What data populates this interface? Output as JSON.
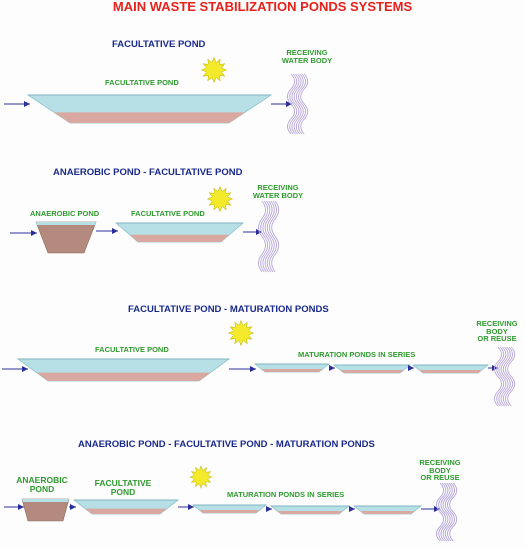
{
  "title": "MAIN WASTE STABILIZATION PONDS SYSTEMS",
  "colors": {
    "title": "#e8211b",
    "section_title": "#1a2a8c",
    "label": "#2f9a2f",
    "water": "#b7dfe6",
    "sludge": "#d9a8a0",
    "anaerobic_body": "#b58a7e",
    "sun": "#f2ea2a",
    "arrow": "#2a2f9a",
    "river": "#b8a7d8"
  },
  "sections": [
    {
      "title": "FACULTATIVE POND",
      "labels": {
        "facultative": "FACULTATIVE POND",
        "receiving": [
          "RECEIVING",
          "WATER BODY"
        ]
      }
    },
    {
      "title": "ANAEROBIC POND - FACULTATIVE POND",
      "labels": {
        "anaerobic": "ANAEROBIC POND",
        "facultative": "FACULTATIVE POND",
        "receiving": [
          "RECEIVING",
          "WATER BODY"
        ]
      }
    },
    {
      "title": "FACULTATIVE POND - MATURATION PONDS",
      "labels": {
        "facultative": "FACULTATIVE POND",
        "maturation": "MATURATION PONDS IN SERIES",
        "receiving": [
          "RECEIVING",
          "BODY",
          "OR REUSE"
        ]
      }
    },
    {
      "title": "ANAEROBIC POND - FACULTATIVE POND - MATURATION PONDS",
      "labels": {
        "anaerobic": [
          "ANAEROBIC",
          "POND"
        ],
        "facultative": [
          "FACULTATIVE",
          "POND"
        ],
        "maturation": "MATURATION PONDS IN SERIES",
        "receiving": [
          "RECEIVING",
          "BODY",
          "OR REUSE"
        ]
      }
    }
  ]
}
